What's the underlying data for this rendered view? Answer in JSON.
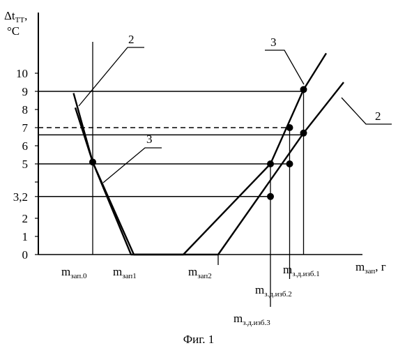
{
  "chart_data": {
    "type": "line",
    "title": "",
    "caption": "Фиг. 1",
    "y_axis": {
      "label_main": "Δt",
      "label_sub": "ТТ",
      "label_suffix": ",",
      "unit": "°C",
      "ticks": [
        {
          "value": 0,
          "label": "0"
        },
        {
          "value": 1,
          "label": "1"
        },
        {
          "value": 2,
          "label": "2"
        },
        {
          "value": 3.2,
          "label": "3,2"
        },
        {
          "value": 4,
          "label": ""
        },
        {
          "value": 5,
          "label": "5"
        },
        {
          "value": 6,
          "label": "6"
        },
        {
          "value": 7,
          "label": "7"
        },
        {
          "value": 8,
          "label": "8"
        },
        {
          "value": 9,
          "label": "9"
        },
        {
          "value": 10,
          "label": "10"
        }
      ],
      "ylim": [
        0,
        10
      ]
    },
    "x_axis": {
      "label_main": "m",
      "label_sub": "зап",
      "label_suffix": ", г",
      "ticks": [
        {
          "id": "m0",
          "main": "m",
          "sub": "зап.0",
          "x": 0
        },
        {
          "id": "m1",
          "main": "m",
          "sub": "зап1",
          "x": 1.18
        },
        {
          "id": "m2",
          "main": "m",
          "sub": "зап2",
          "x": 3.6
        },
        {
          "id": "m3",
          "main": "m",
          "sub": "з.д.изб.3",
          "x": 5.1
        },
        {
          "id": "m4",
          "main": "m",
          "sub": "з.д.изб.2",
          "x": 5.65
        },
        {
          "id": "m5",
          "main": "m",
          "sub": "з.д.изб.1",
          "x": 6.05
        }
      ]
    },
    "series": [
      {
        "name": "2",
        "points": [
          [
            -0.55,
            8.9
          ],
          [
            0,
            5.1
          ],
          [
            1.18,
            0
          ],
          [
            3.6,
            0
          ],
          [
            6.05,
            6.7
          ],
          [
            7.2,
            9.5
          ]
        ]
      },
      {
        "name": "3",
        "points": [
          [
            -0.5,
            8.1
          ],
          [
            0,
            5.1
          ],
          [
            1.1,
            0
          ],
          [
            2.6,
            0
          ],
          [
            5.1,
            5.0
          ],
          [
            6.05,
            9.1
          ],
          [
            6.7,
            11.1
          ]
        ]
      }
    ],
    "reference_lines": [
      {
        "y": 9,
        "label": "9"
      },
      {
        "y": 7,
        "label": "7",
        "dashed": true
      },
      {
        "y": 6.6,
        "label": "6"
      },
      {
        "y": 5,
        "label": "5"
      },
      {
        "y": 3.2,
        "label": "3,2"
      }
    ],
    "markers": [
      {
        "x": 0,
        "y": 5.1
      },
      {
        "x": 5.1,
        "y": 5.0
      },
      {
        "x": 5.1,
        "y": 3.2
      },
      {
        "x": 5.65,
        "y": 7.0
      },
      {
        "x": 5.65,
        "y": 5.0
      },
      {
        "x": 6.05,
        "y": 9.1
      },
      {
        "x": 6.05,
        "y": 6.7
      }
    ],
    "callouts": [
      {
        "label": "2",
        "target_series": "2",
        "position": "top-left"
      },
      {
        "label": "3",
        "target_series": "3",
        "position": "middle-left"
      },
      {
        "label": "3",
        "target_series": "3",
        "position": "top-right"
      },
      {
        "label": "2",
        "target_series": "2",
        "position": "right"
      }
    ]
  }
}
